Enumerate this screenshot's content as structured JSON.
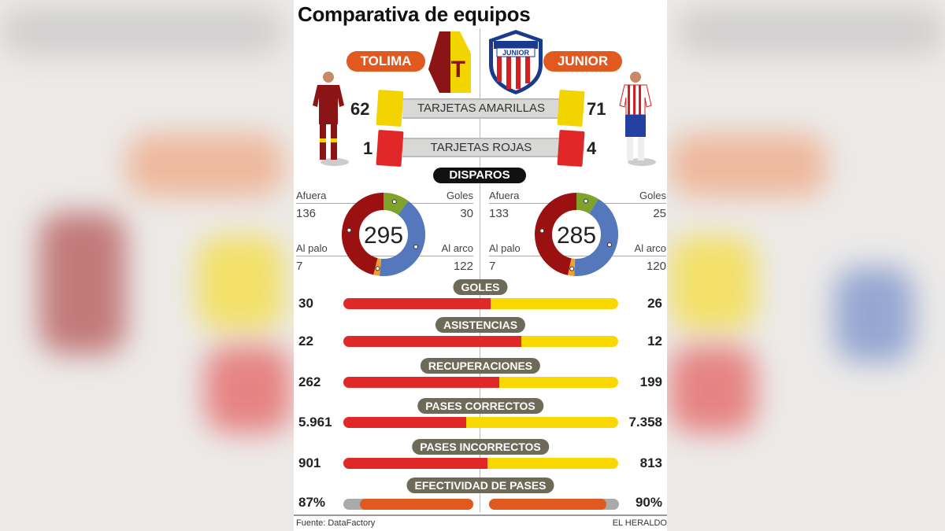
{
  "title": "Comparativa de equipos",
  "teams": {
    "left": "TOLIMA",
    "right": "JUNIOR",
    "right_crest_text": "JUNIOR"
  },
  "cards": {
    "yellow": {
      "label": "TARJETAS AMARILLAS",
      "left": "62",
      "right": "71"
    },
    "red": {
      "label": "TARJETAS ROJAS",
      "left": "1",
      "right": "4"
    }
  },
  "shots": {
    "label": "DISPAROS",
    "left": {
      "total": "295",
      "afuera": "136",
      "goles": "30",
      "al_palo": "7",
      "al_arco": "122"
    },
    "right": {
      "total": "285",
      "afuera": "133",
      "goles": "25",
      "al_palo": "7",
      "al_arco": "120"
    },
    "labels": {
      "afuera": "Afuera",
      "goles": "Goles",
      "al_palo": "Al palo",
      "al_arco": "Al arco"
    }
  },
  "colors": {
    "goles": "#7fa22a",
    "al_arco": "#5577bb",
    "al_palo": "#f0a030",
    "afuera": "#9b1010",
    "left_bar": "#e02828",
    "right_bar": "#f8d800",
    "accent": "#e2591f"
  },
  "stats": [
    {
      "label": "GOLES",
      "left": "30",
      "right": "26"
    },
    {
      "label": "ASISTENCIAS",
      "left": "22",
      "right": "12"
    },
    {
      "label": "RECUPERACIONES",
      "left": "262",
      "right": "199"
    },
    {
      "label": "PASES CORRECTOS",
      "left": "5.961",
      "right": "7.358"
    },
    {
      "label": "PASES INCORRECTOS",
      "left": "901",
      "right": "813"
    }
  ],
  "effectiveness": {
    "label": "EFECTIVIDAD DE PASES",
    "left": "87%",
    "right": "90%"
  },
  "footer": {
    "source": "Fuente: DataFactory",
    "brand": "EL HERALDO"
  },
  "chart_data": {
    "type": "bar",
    "title": "Comparativa de equipos",
    "categories": [
      "GOLES",
      "ASISTENCIAS",
      "RECUPERACIONES",
      "PASES CORRECTOS",
      "PASES INCORRECTOS",
      "EFECTIVIDAD DE PASES"
    ],
    "series": [
      {
        "name": "TOLIMA",
        "values": [
          30,
          22,
          262,
          5961,
          901,
          87
        ]
      },
      {
        "name": "JUNIOR",
        "values": [
          26,
          12,
          199,
          7358,
          813,
          90
        ]
      }
    ],
    "donuts": [
      {
        "name": "TOLIMA",
        "total": 295,
        "slices": {
          "Goles": 30,
          "Al arco": 122,
          "Al palo": 7,
          "Afuera": 136
        }
      },
      {
        "name": "JUNIOR",
        "total": 285,
        "slices": {
          "Goles": 25,
          "Al arco": 120,
          "Al palo": 7,
          "Afuera": 133
        }
      }
    ]
  }
}
